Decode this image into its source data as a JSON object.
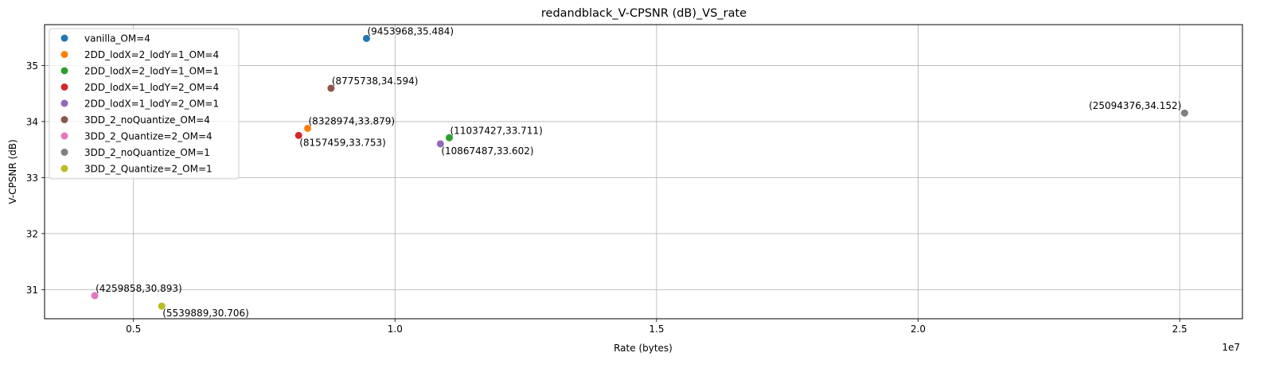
{
  "chart_data": {
    "type": "scatter",
    "title": "redandblack_V-CPSNR (dB)_VS_rate",
    "xlabel": "Rate (bytes)",
    "ylabel": "V-CPSNR (dB)",
    "x_offset_text": "1e7",
    "x_scale": 10000000,
    "xlim": [
      3300000,
      26200000
    ],
    "ylim": [
      30.48,
      35.73
    ],
    "x_ticks": [
      5000000,
      10000000,
      15000000,
      20000000,
      25000000
    ],
    "x_tick_labels": [
      "0.5",
      "1.0",
      "1.5",
      "2.0",
      "2.5"
    ],
    "y_ticks": [
      31,
      32,
      33,
      34,
      35
    ],
    "y_tick_labels": [
      "31",
      "32",
      "33",
      "34",
      "35"
    ],
    "grid": true,
    "legend_position": "top-left",
    "series": [
      {
        "name": "vanilla_OM=4",
        "color": "#1f77b4",
        "x": 9453968,
        "y": 35.484,
        "annotation": "(9453968,35.484)",
        "label_placement": "above-right"
      },
      {
        "name": "2DD_lodX=2_lodY=1_OM=4",
        "color": "#ff7f0e",
        "x": 8328974,
        "y": 33.879,
        "annotation": "(8328974,33.879)",
        "label_placement": "above-right"
      },
      {
        "name": "2DD_lodX=2_lodY=1_OM=1",
        "color": "#2ca02c",
        "x": 11037427,
        "y": 33.711,
        "annotation": "(11037427,33.711)",
        "label_placement": "above-right"
      },
      {
        "name": "2DD_lodX=1_lodY=2_OM=4",
        "color": "#d62728",
        "x": 8157459,
        "y": 33.753,
        "annotation": "(8157459,33.753)",
        "label_placement": "below-right"
      },
      {
        "name": "2DD_lodX=1_lodY=2_OM=1",
        "color": "#9467bd",
        "x": 10867487,
        "y": 33.602,
        "annotation": "(10867487,33.602)",
        "label_placement": "below-right"
      },
      {
        "name": "3DD_2_noQuantize_OM=4",
        "color": "#8c564b",
        "x": 8775738,
        "y": 34.594,
        "annotation": "(8775738,34.594)",
        "label_placement": "above-right"
      },
      {
        "name": "3DD_2_Quantize=2_OM=4",
        "color": "#e377c2",
        "x": 4259858,
        "y": 30.893,
        "annotation": "(4259858,30.893)",
        "label_placement": "above-right"
      },
      {
        "name": "3DD_2_noQuantize_OM=1",
        "color": "#7f7f7f",
        "x": 25094376,
        "y": 34.152,
        "annotation": "(25094376,34.152)",
        "label_placement": "above-left"
      },
      {
        "name": "3DD_2_Quantize=2_OM=1",
        "color": "#bcbd22",
        "x": 5539889,
        "y": 30.706,
        "annotation": "(5539889,30.706)",
        "label_placement": "below-right"
      }
    ]
  }
}
